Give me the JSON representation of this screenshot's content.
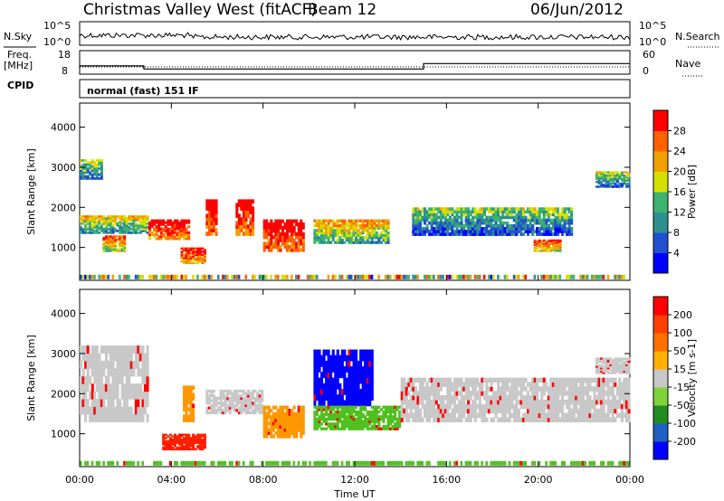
{
  "header": {
    "station": "Christmas Valley West (fitACF)",
    "beam": "Beam 12",
    "date": "06/Jun/2012"
  },
  "noise_panel": {
    "left_label": "N.Sky",
    "right_label": "N.Search",
    "yticks": [
      "10^5",
      "10^0"
    ]
  },
  "freq_panel": {
    "left_label_line1": "Freq.",
    "left_label_line2": "[MHz]",
    "right_label": "Nave",
    "left_ticks": [
      "18",
      "8"
    ],
    "right_ticks": [
      "60",
      "0"
    ],
    "freq_steps": [
      {
        "t": 0.0,
        "f": 11.5
      },
      {
        "t": 2.8,
        "f": 11.5
      },
      {
        "t": 2.8,
        "f": 10.2
      },
      {
        "t": 15.0,
        "f": 10.2
      },
      {
        "t": 15.0,
        "f": 12.5
      },
      {
        "t": 24.0,
        "f": 12.5
      }
    ]
  },
  "cpid": {
    "label": "CPID",
    "program": "normal (fast) 151 IF"
  },
  "chart_data": [
    {
      "type": "heatmap",
      "panel": "power",
      "ylabel": "Slant Range [km]",
      "ylim": [
        180,
        4600
      ],
      "xlim": [
        0,
        24
      ],
      "yticks": [
        "1000",
        "2000",
        "3000",
        "4000"
      ],
      "colorbar": {
        "label": "Power [dB]",
        "ticks": [
          "4",
          "8",
          "12",
          "16",
          "20",
          "24",
          "28"
        ],
        "colors": [
          "#0000ff",
          "#2050d0",
          "#2f8f8f",
          "#3cb371",
          "#d6e000",
          "#f0a000",
          "#ff6000",
          "#ff0000"
        ]
      },
      "echo_regions": [
        {
          "t0": 0.0,
          "t1": 1.0,
          "r0": 2700,
          "r1": 3200,
          "level": 0.4
        },
        {
          "t0": 0.0,
          "t1": 3.0,
          "r0": 1350,
          "r1": 1800,
          "level": 0.5
        },
        {
          "t0": 1.0,
          "t1": 2.0,
          "r0": 900,
          "r1": 1300,
          "level": 0.7
        },
        {
          "t0": 3.0,
          "t1": 4.8,
          "r0": 1200,
          "r1": 1700,
          "level": 0.9
        },
        {
          "t0": 4.4,
          "t1": 5.5,
          "r0": 600,
          "r1": 1000,
          "level": 0.85
        },
        {
          "t0": 5.5,
          "t1": 6.0,
          "r0": 1300,
          "r1": 2200,
          "level": 0.95
        },
        {
          "t0": 6.8,
          "t1": 7.6,
          "r0": 1300,
          "r1": 2200,
          "level": 0.95
        },
        {
          "t0": 8.0,
          "t1": 9.8,
          "r0": 900,
          "r1": 1700,
          "level": 0.95
        },
        {
          "t0": 10.2,
          "t1": 13.5,
          "r0": 1100,
          "r1": 1700,
          "level": 0.55
        },
        {
          "t0": 14.5,
          "t1": 21.5,
          "r0": 1300,
          "r1": 2000,
          "level": 0.35
        },
        {
          "t0": 19.8,
          "t1": 21.0,
          "r0": 900,
          "r1": 1200,
          "level": 0.75
        },
        {
          "t0": 22.5,
          "t1": 24.0,
          "r0": 2500,
          "r1": 2900,
          "level": 0.4
        }
      ]
    },
    {
      "type": "heatmap",
      "panel": "velocity",
      "ylabel": "Slant Range [km]",
      "ylim": [
        180,
        4600
      ],
      "xlim": [
        0,
        24
      ],
      "yticks": [
        "1000",
        "2000",
        "3000",
        "4000"
      ],
      "xticks": [
        "00:00",
        "04:00",
        "08:00",
        "12:00",
        "16:00",
        "20:00",
        "00:00"
      ],
      "xlabel": "Time UT",
      "colorbar": {
        "label": "Velocity [m s-1]",
        "ticks": [
          "200",
          "100",
          "50",
          "15",
          "-15",
          "-50",
          "-100",
          "-200"
        ],
        "colors": [
          "#0000ff",
          "#2060c0",
          "#228b22",
          "#7fd43c",
          "#c8c8c8",
          "#ffb000",
          "#ff7000",
          "#ff4000",
          "#ff0000"
        ]
      },
      "echo_regions": [
        {
          "t0": 0.0,
          "t1": 3.0,
          "r0": 1300,
          "r1": 3200,
          "v": "gray"
        },
        {
          "t0": 3.6,
          "t1": 5.5,
          "r0": 600,
          "r1": 1000,
          "v": "red"
        },
        {
          "t0": 4.5,
          "t1": 5.0,
          "r0": 1300,
          "r1": 2200,
          "v": "orange"
        },
        {
          "t0": 5.5,
          "t1": 8.0,
          "r0": 1500,
          "r1": 2100,
          "v": "gray"
        },
        {
          "t0": 8.0,
          "t1": 9.8,
          "r0": 900,
          "r1": 1700,
          "v": "orange"
        },
        {
          "t0": 10.2,
          "t1": 12.8,
          "r0": 1700,
          "r1": 3100,
          "v": "blue"
        },
        {
          "t0": 10.2,
          "t1": 14.0,
          "r0": 1100,
          "r1": 1700,
          "v": "green"
        },
        {
          "t0": 14.0,
          "t1": 24.0,
          "r0": 1300,
          "r1": 2400,
          "v": "gray"
        },
        {
          "t0": 22.5,
          "t1": 24.0,
          "r0": 2500,
          "r1": 2900,
          "v": "gray"
        }
      ]
    }
  ]
}
